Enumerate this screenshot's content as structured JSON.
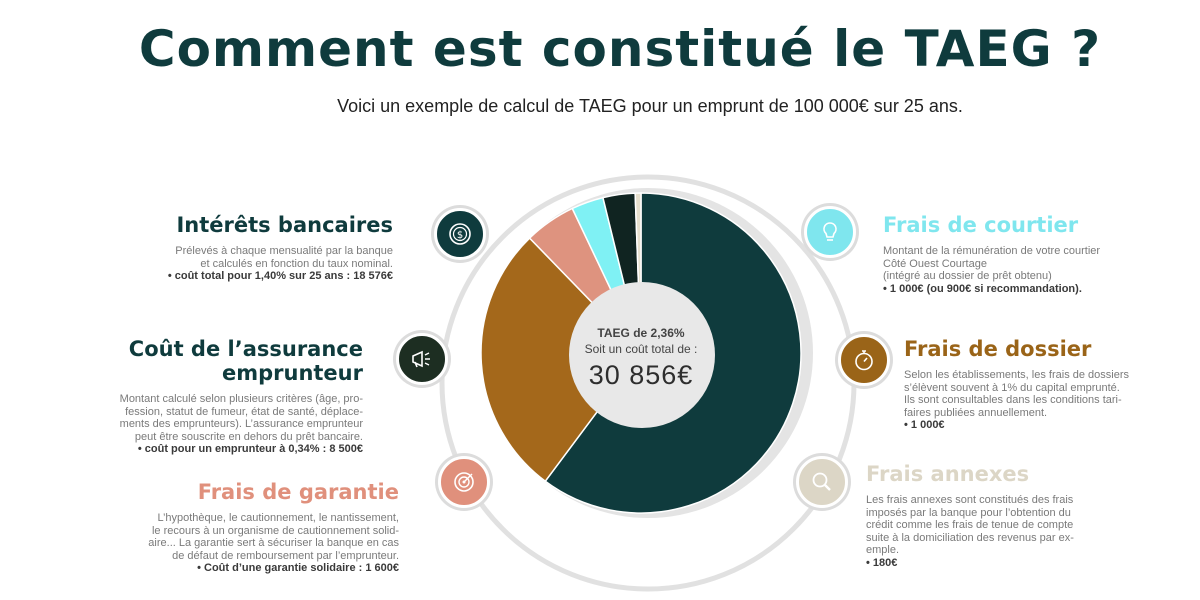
{
  "title": "Comment est constitué le TAEG ?",
  "subtitle": "Voici un exemple de calcul de TAEG pour un emprunt de 100 000€ sur 25 ans.",
  "center": {
    "line1": "TAEG de 2,36%",
    "line2": "Soit un coût total de :",
    "total": "30 856€"
  },
  "blocks": {
    "interets": {
      "title": "Intérêts bancaires",
      "text": "Prélevés à chaque mensualité par la banque\net calculés en fonction du taux nominal.",
      "cost": "• coût total pour 1,40% sur 25 ans  : 18 576€",
      "color": "#0f3b3d",
      "icon": "dollar-cursor-icon"
    },
    "assurance": {
      "title": "Coût de l’assurance emprunteur",
      "text": "Montant calculé selon plusieurs critères (âge, pro-\nfession, statut de fumeur, état de santé, déplace-\nments des emprunteurs). L’assurance emprunteur\npeut être souscrite en dehors du prêt bancaire.",
      "cost": "• coût pour un emprunteur à 0,34% : 8 500€",
      "color": "#0f3b3d",
      "icon": "megaphone-icon"
    },
    "garantie": {
      "title": "Frais de garantie",
      "text": "L’hypothèque, le cautionnement, le nantissement,\nle recours à un organisme de cautionnement solid-\naire... La garantie sert à sécuriser la banque en cas\nde défaut de remboursement par l’emprunteur.",
      "cost": "• Coût d’une garantie solidaire : 1 600€",
      "color": "#e0907c",
      "icon": "target-icon"
    },
    "courtier": {
      "title": "Frais de courtier",
      "text": "Montant de la rémunération de votre courtier\nCôté Ouest Courtage\n(intégré au dossier de prêt obtenu)",
      "cost": "• 1 000€ (ou 900€ si recommandation).",
      "color": "#7fe6ee",
      "icon": "lightbulb-icon"
    },
    "dossier": {
      "title": "Frais de dossier",
      "text": "Selon les établissements, les frais de dossiers\ns’élèvent souvent à 1% du capital emprunté.\nIls sont consultables dans les conditions tari-\nfaires publiées annuellement.",
      "cost": "• 1 000€",
      "color": "#9a6418",
      "icon": "stopwatch-icon"
    },
    "annexes": {
      "title": "Frais annexes",
      "text": "Les frais annexes sont constitués des frais\nimposés par la banque pour l’obtention du\ncrédit comme les frais de tenue de compte\nsuite à la domiciliation des revenus par ex-\nemple.",
      "cost": "• 180€",
      "color": "#dcd6c6",
      "icon": "magnifier-icon"
    }
  },
  "chart_data": {
    "type": "pie",
    "donut": true,
    "categories": [
      "Intérêts bancaires",
      "Coût de l’assurance emprunteur",
      "Frais de garantie",
      "Frais de courtier",
      "Frais de dossier",
      "Frais annexes"
    ],
    "values": [
      18576,
      8500,
      1600,
      1000,
      1000,
      180
    ],
    "colors": [
      "#0f3b3d",
      "#a4681b",
      "#de937f",
      "#7ff1f4",
      "#102421",
      "#e6dfcd"
    ],
    "total": 30856
  }
}
